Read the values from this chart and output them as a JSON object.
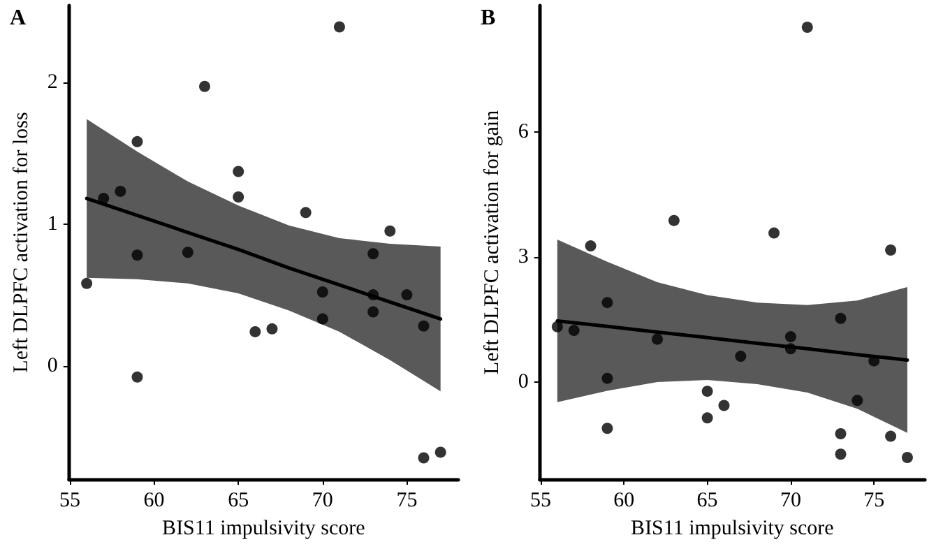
{
  "chart_data": [
    {
      "type": "scatter",
      "title": "A",
      "xlabel": "BIS11 impulsivity score",
      "ylabel": "Left DLPFC activation for loss",
      "xlim": [
        54.95,
        78.05
      ],
      "xticks": [
        55,
        60,
        65,
        70,
        75
      ],
      "ylim": [
        -0.8,
        2.54
      ],
      "yticks": [
        0,
        1,
        2
      ],
      "grid": false,
      "series": [
        {
          "marker": "circle",
          "color": "#000000",
          "x": [
            56,
            57,
            58,
            59,
            59,
            59,
            62,
            63,
            65,
            65,
            66,
            67,
            69,
            70,
            70,
            71,
            73,
            73,
            73,
            74,
            75,
            76,
            76,
            77
          ],
          "values": [
            0.58,
            1.18,
            1.23,
            1.58,
            0.78,
            -0.08,
            0.8,
            1.97,
            1.37,
            1.19,
            0.24,
            0.26,
            1.08,
            0.52,
            0.33,
            2.39,
            0.79,
            0.5,
            0.38,
            0.95,
            0.5,
            0.28,
            -0.65,
            -0.61
          ]
        },
        {
          "type": "line",
          "marker": "none",
          "color": "#000000",
          "x": [
            56,
            59,
            62,
            65,
            68,
            71,
            74,
            77
          ],
          "values": [
            1.18,
            1.06,
            0.94,
            0.82,
            0.69,
            0.57,
            0.45,
            0.33
          ],
          "lower": [
            0.62,
            0.61,
            0.58,
            0.51,
            0.39,
            0.24,
            0.04,
            -0.18
          ],
          "upper": [
            1.74,
            1.51,
            1.3,
            1.13,
            0.99,
            0.9,
            0.86,
            0.84
          ]
        }
      ]
    },
    {
      "type": "scatter",
      "title": "B",
      "xlabel": "BIS11 impulsivity score",
      "ylabel": "Left DLPFC activation for gain",
      "xlim": [
        54.95,
        78.05
      ],
      "xticks": [
        55,
        60,
        65,
        70,
        75
      ],
      "ylim": [
        -2.33,
        9.04
      ],
      "yticks": [
        0,
        3,
        6
      ],
      "grid": false,
      "series": [
        {
          "marker": "circle",
          "color": "#000000",
          "x": [
            56,
            57,
            58,
            59,
            59,
            59,
            62,
            63,
            65,
            65,
            66,
            67,
            69,
            70,
            70,
            71,
            73,
            73,
            73,
            74,
            75,
            76,
            76,
            77
          ],
          "values": [
            1.33,
            1.24,
            3.27,
            1.91,
            0.09,
            -1.11,
            1.03,
            3.88,
            -0.22,
            -0.86,
            -0.56,
            0.62,
            3.58,
            1.09,
            0.8,
            8.52,
            1.53,
            -1.24,
            -1.73,
            -0.44,
            0.51,
            3.17,
            -1.3,
            -1.81
          ]
        },
        {
          "type": "line",
          "marker": "none",
          "color": "#000000",
          "x": [
            56,
            59,
            62,
            65,
            68,
            71,
            74,
            77
          ],
          "values": [
            1.47,
            1.34,
            1.2,
            1.07,
            0.93,
            0.8,
            0.66,
            0.53
          ],
          "lower": [
            -0.48,
            -0.21,
            0,
            0.05,
            -0.05,
            -0.25,
            -0.64,
            -1.22
          ],
          "upper": [
            3.42,
            2.89,
            2.4,
            2.09,
            1.91,
            1.85,
            1.96,
            2.28
          ]
        }
      ]
    }
  ]
}
